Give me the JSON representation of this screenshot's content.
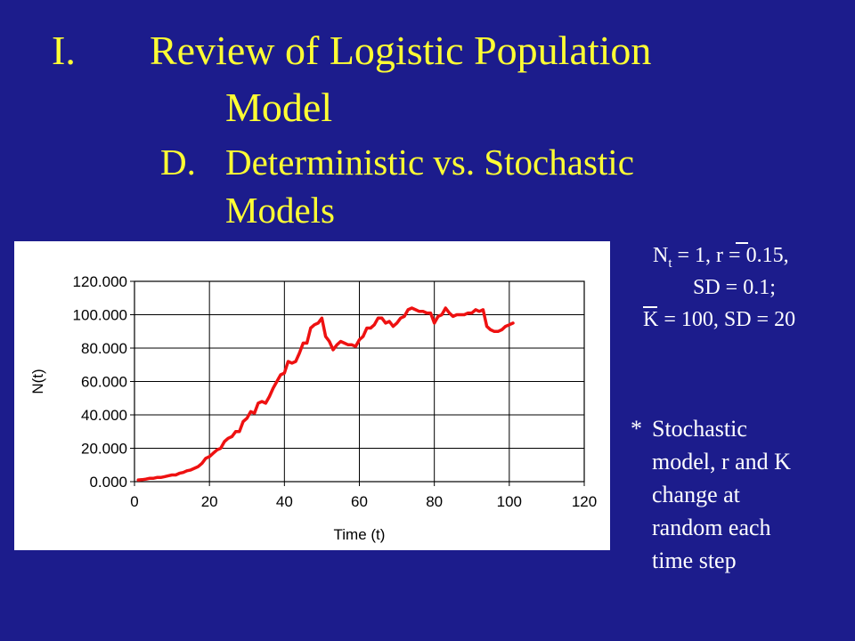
{
  "slide": {
    "title_num": "I.",
    "title_line1": "Review of Logistic Population",
    "title_line2": "Model",
    "subtitle_letter": "D.",
    "subtitle_line1": "Deterministic vs. Stochastic",
    "subtitle_line2": "Models",
    "params": {
      "line1_pre": "N",
      "line1_sub": "t",
      "line1_post": " = 1, r = 0.15,",
      "line2": "SD = 0.1;",
      "line3": "K = 100, SD = 20"
    },
    "note": {
      "bullet": "*",
      "lines": [
        "Stochastic",
        "model, r and K",
        "change at",
        "random each",
        "time step"
      ]
    }
  },
  "colors": {
    "background": "#1c1c8c",
    "title": "#ffff33",
    "text": "#ffffff",
    "series": "#ee1111"
  },
  "chart_data": {
    "type": "line",
    "title": "",
    "xlabel": "Time (t)",
    "ylabel": "N(t)",
    "xlim": [
      0,
      120
    ],
    "ylim": [
      0,
      120
    ],
    "x_ticks": [
      "0",
      "20",
      "40",
      "60",
      "80",
      "100",
      "120"
    ],
    "y_ticks": [
      "0.000",
      "20.000",
      "40.000",
      "60.000",
      "80.000",
      "100.000",
      "120.000"
    ],
    "grid": true,
    "legend": "none",
    "series": [
      {
        "name": "",
        "x": [
          1,
          2,
          3,
          4,
          5,
          6,
          7,
          8,
          9,
          10,
          11,
          12,
          13,
          14,
          15,
          16,
          17,
          18,
          19,
          20,
          21,
          22,
          23,
          24,
          25,
          26,
          27,
          28,
          29,
          30,
          31,
          32,
          33,
          34,
          35,
          36,
          37,
          38,
          39,
          40,
          41,
          42,
          43,
          44,
          45,
          46,
          47,
          48,
          49,
          50,
          51,
          52,
          53,
          54,
          55,
          56,
          57,
          58,
          59,
          60,
          61,
          62,
          63,
          64,
          65,
          66,
          67,
          68,
          69,
          70,
          71,
          72,
          73,
          74,
          75,
          76,
          77,
          78,
          79,
          80,
          81,
          82,
          83,
          84,
          85,
          86,
          87,
          88,
          89,
          90,
          91,
          92,
          93,
          94,
          95,
          96,
          97,
          98,
          99,
          100,
          101
        ],
        "y": [
          1,
          1.2,
          1.5,
          2,
          2,
          2.5,
          2.5,
          3,
          3.5,
          4,
          4,
          5,
          5.5,
          6.5,
          7,
          8,
          9,
          11,
          14,
          15,
          17,
          19,
          20,
          24,
          26,
          27,
          30,
          30,
          36,
          38,
          42,
          41,
          47,
          48,
          47,
          51,
          56,
          60,
          64,
          65,
          72,
          71,
          72,
          77,
          83,
          83,
          92,
          94,
          95,
          98,
          87,
          84,
          79,
          82,
          84,
          83,
          82,
          82,
          81,
          85,
          87,
          92,
          92,
          94,
          98,
          98,
          95,
          96,
          93,
          95,
          98,
          99,
          103,
          104,
          103,
          102,
          102,
          101,
          101,
          95,
          99,
          100,
          104,
          101,
          99,
          100,
          100,
          100,
          101,
          101,
          103,
          102,
          103,
          93,
          91,
          90,
          90,
          91,
          93,
          94,
          95
        ]
      }
    ]
  }
}
